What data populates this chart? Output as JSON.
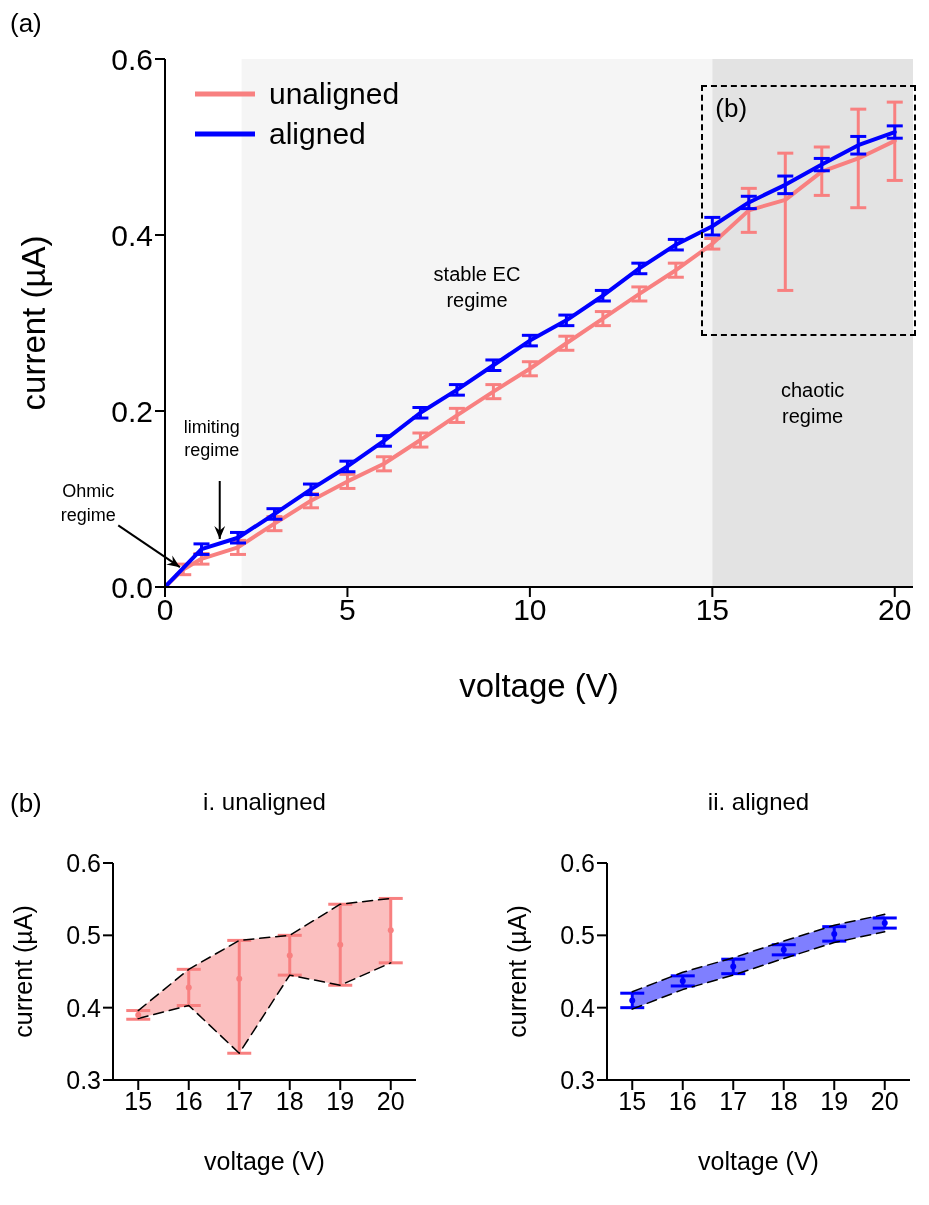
{
  "chart_data": [
    {
      "type": "line",
      "xlabel": "voltage (V)",
      "ylabel": "current (µA)",
      "xlim": [
        0,
        20.5
      ],
      "xticks": [
        0,
        5,
        10,
        15,
        20
      ],
      "ylim": [
        0,
        0.6
      ],
      "yticks": [
        {
          "value": 0,
          "label": "0.0"
        },
        0.2,
        0.4,
        0.6
      ],
      "legend": "top left",
      "line_style": "solid",
      "annotations": [
        "(a)",
        "(b)",
        {
          "text": "Ohmic regime",
          "x": 0.5,
          "y": 0.02
        },
        {
          "text": "limiting regime",
          "x": 1.5,
          "y": 0.05
        }
      ],
      "bands": [
        {
          "axis": "x",
          "from": 2.1,
          "to": 15,
          "label": "stable EC regime",
          "color": "#f5f5f5"
        },
        {
          "axis": "x",
          "from": 15,
          "to": 20.5,
          "label": "chaotic regime",
          "color": "#e3e3e3"
        }
      ],
      "series": [
        {
          "name": "unaligned",
          "color": "#f88080",
          "x": [
            0,
            0.5,
            1,
            2,
            3,
            4,
            5,
            6,
            7,
            8,
            9,
            10,
            11,
            12,
            13,
            14,
            15,
            16,
            17,
            18,
            19,
            20
          ],
          "values": [
            0,
            0.02,
            0.032,
            0.045,
            0.072,
            0.098,
            0.12,
            0.14,
            0.167,
            0.195,
            0.222,
            0.248,
            0.277,
            0.305,
            0.333,
            0.36,
            0.39,
            0.428,
            0.44,
            0.472,
            0.487,
            0.507
          ],
          "errors": [
            null,
            0.006,
            0.006,
            0.008,
            0.008,
            0.008,
            0.008,
            0.008,
            0.008,
            0.008,
            0.008,
            0.008,
            0.008,
            0.008,
            0.008,
            0.008,
            0.006,
            [
              0.403,
              0.453
            ],
            [
              0.337,
              0.493
            ],
            [
              0.445,
              0.5
            ],
            [
              0.431,
              0.543
            ],
            [
              0.462,
              0.551
            ]
          ]
        },
        {
          "name": "aligned",
          "color": "#0000ff",
          "x": [
            0,
            1,
            2,
            3,
            4,
            5,
            6,
            7,
            8,
            9,
            10,
            11,
            12,
            13,
            14,
            15,
            16,
            17,
            18,
            19,
            20
          ],
          "values": [
            0,
            0.043,
            0.056,
            0.083,
            0.111,
            0.137,
            0.166,
            0.198,
            0.224,
            0.252,
            0.28,
            0.303,
            0.331,
            0.362,
            0.389,
            0.41,
            0.437,
            0.457,
            0.48,
            0.502,
            0.517
          ],
          "errors": [
            null,
            0.006,
            0.006,
            0.006,
            0.006,
            0.006,
            0.006,
            0.006,
            0.006,
            0.006,
            0.006,
            0.006,
            0.006,
            0.006,
            0.006,
            0.01,
            0.007,
            0.01,
            0.007,
            0.01,
            0.007
          ]
        }
      ]
    },
    {
      "type": "scatter",
      "title": "i. unaligned",
      "xlabel": "voltage (V)",
      "ylabel": "current (µA)",
      "xlim": [
        14.5,
        20.5
      ],
      "xticks": [
        15,
        16,
        17,
        18,
        19,
        20
      ],
      "ylim": [
        0.3,
        0.6
      ],
      "yticks": [
        0.3,
        0.4,
        0.5,
        0.6
      ],
      "marker": "circle",
      "annotations": [
        "(b)"
      ],
      "series": [
        {
          "color": "#f88080",
          "x": [
            15,
            16,
            17,
            18,
            19,
            20
          ],
          "values": [
            0.39,
            0.428,
            0.44,
            0.472,
            0.487,
            0.507
          ],
          "errors": [
            0.006,
            [
              0.403,
              0.453
            ],
            [
              0.337,
              0.493
            ],
            [
              0.445,
              0.5
            ],
            [
              0.431,
              0.543
            ],
            [
              0.462,
              0.551
            ]
          ],
          "lower": [
            0.385,
            0.403,
            0.337,
            0.445,
            0.431,
            0.462
          ],
          "upper": [
            0.396,
            0.453,
            0.493,
            0.5,
            0.543,
            0.551
          ]
        },
        {
          "type": "line",
          "line_style": "dashed",
          "marker": "none",
          "color": "#000000",
          "x": [
            15,
            16,
            17,
            18,
            19,
            20
          ],
          "values": [
            0.385,
            0.403,
            0.337,
            0.445,
            0.431,
            0.462
          ]
        },
        {
          "type": "line",
          "line_style": "dashed",
          "marker": "none",
          "color": "#000000",
          "x": [
            15,
            16,
            17,
            18,
            19,
            20
          ],
          "values": [
            0.396,
            0.453,
            0.493,
            0.5,
            0.543,
            0.551
          ]
        }
      ]
    },
    {
      "type": "scatter",
      "title": "ii. aligned",
      "xlabel": "voltage (V)",
      "ylabel": "current (µA)",
      "xlim": [
        14.5,
        20.5
      ],
      "xticks": [
        15,
        16,
        17,
        18,
        19,
        20
      ],
      "ylim": [
        0.3,
        0.6
      ],
      "yticks": [
        0.3,
        0.4,
        0.5,
        0.6
      ],
      "marker": "circle",
      "series": [
        {
          "color": "#0000ff",
          "x": [
            15,
            16,
            17,
            18,
            19,
            20
          ],
          "values": [
            0.41,
            0.437,
            0.457,
            0.48,
            0.502,
            0.517
          ],
          "errors": [
            0.01,
            0.007,
            0.01,
            0.007,
            0.01,
            0.007
          ],
          "lower": [
            0.398,
            0.425,
            0.445,
            0.468,
            0.49,
            0.505
          ],
          "upper": [
            0.422,
            0.449,
            0.469,
            0.492,
            0.514,
            0.529
          ]
        },
        {
          "type": "line",
          "line_style": "dashed",
          "marker": "none",
          "color": "#000000",
          "x": [
            15,
            16,
            17,
            18,
            19,
            20
          ],
          "values": [
            0.398,
            0.425,
            0.445,
            0.468,
            0.49,
            0.505
          ]
        },
        {
          "type": "line",
          "line_style": "dashed",
          "marker": "none",
          "color": "#000000",
          "x": [
            15,
            16,
            17,
            18,
            19,
            20
          ],
          "values": [
            0.422,
            0.449,
            0.469,
            0.492,
            0.514,
            0.529
          ]
        }
      ]
    }
  ]
}
